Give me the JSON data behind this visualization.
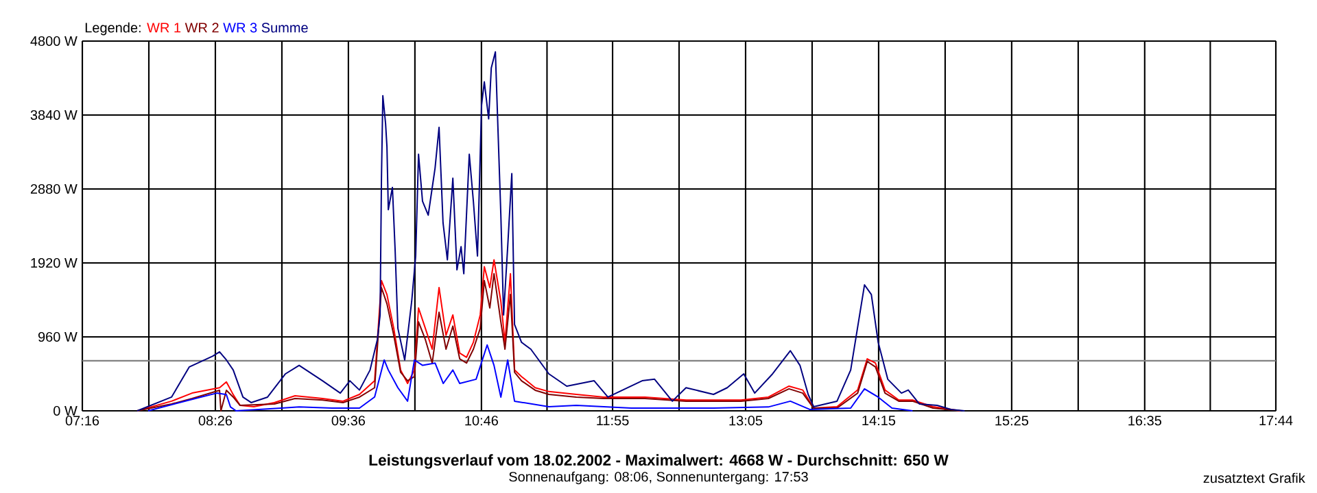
{
  "chart_data": {
    "type": "line",
    "title": "Leistungsverlauf vom 18.02.2002 - Maximalwert: 4668 W - Durchschnitt: 650 W",
    "subtitle": "Sonnenaufgang: 08:06, Sonnenuntergang: 17:53",
    "legend_title": "Legende:",
    "annotations": [
      "zusatztext Grafik"
    ],
    "legend": "top left",
    "grid": true,
    "xlim": [
      7.2667,
      17.7333
    ],
    "ylim": [
      0,
      4800
    ],
    "xticks": [
      {
        "value": 7.2667,
        "label": "07:16"
      },
      {
        "value": 7.85,
        "label": null
      },
      {
        "value": 8.4333,
        "label": "08:26"
      },
      {
        "value": 9.0167,
        "label": null
      },
      {
        "value": 9.6,
        "label": "09:36"
      },
      {
        "value": 10.1833,
        "label": null
      },
      {
        "value": 10.7667,
        "label": "10:46"
      },
      {
        "value": 11.3417,
        "label": null
      },
      {
        "value": 11.9167,
        "label": "11:55"
      },
      {
        "value": 12.5,
        "label": null
      },
      {
        "value": 13.0833,
        "label": "13:05"
      },
      {
        "value": 13.6667,
        "label": null
      },
      {
        "value": 14.25,
        "label": "14:15"
      },
      {
        "value": 14.8333,
        "label": null
      },
      {
        "value": 15.4167,
        "label": "15:25"
      },
      {
        "value": 16.0,
        "label": null
      },
      {
        "value": 16.5833,
        "label": "16:35"
      },
      {
        "value": 17.1583,
        "label": null
      },
      {
        "value": 17.7333,
        "label": "17:44"
      }
    ],
    "yticks": [
      {
        "value": 0,
        "label": "0 W"
      },
      {
        "value": 960,
        "label": "960 W"
      },
      {
        "value": 1920,
        "label": "1920 W"
      },
      {
        "value": 2880,
        "label": "2880 W"
      },
      {
        "value": 3840,
        "label": "3840 W"
      },
      {
        "value": 4800,
        "label": "4800 W"
      }
    ],
    "ref_lines": [
      {
        "axis": "y",
        "value": 650,
        "color": "#808080"
      }
    ],
    "series": [
      {
        "name": "WR 1",
        "color": "#ff0000",
        "x": [
          7.748,
          8.049,
          8.229,
          8.47,
          8.53,
          8.59,
          8.65,
          8.771,
          8.951,
          9.132,
          9.373,
          9.553,
          9.697,
          9.83,
          9.89,
          9.938,
          9.998,
          10.058,
          10.119,
          10.179,
          10.215,
          10.275,
          10.335,
          10.395,
          10.456,
          10.516,
          10.576,
          10.636,
          10.696,
          10.756,
          10.792,
          10.84,
          10.877,
          10.937,
          10.973,
          11.021,
          11.057,
          11.118,
          11.238,
          11.358,
          11.599,
          11.84,
          12.2,
          12.561,
          13.043,
          13.283,
          13.464,
          13.584,
          13.68,
          13.885,
          14.066,
          14.15,
          14.222,
          14.306,
          14.427,
          14.547,
          14.727,
          14.968
        ],
        "values": [
          0,
          125,
          230,
          300,
          375,
          210,
          71,
          53,
          107,
          195,
          160,
          125,
          213,
          390,
          1690,
          1510,
          1070,
          530,
          355,
          530,
          1335,
          1070,
          800,
          1600,
          980,
          1245,
          750,
          695,
          890,
          1245,
          1870,
          1600,
          1960,
          1420,
          890,
          1780,
          530,
          445,
          300,
          250,
          213,
          178,
          178,
          140,
          140,
          178,
          320,
          270,
          35,
          53,
          270,
          675,
          620,
          270,
          140,
          140,
          53,
          0
        ]
      },
      {
        "name": "WR 2",
        "color": "#800000",
        "x": [
          7.748,
          8.049,
          8.229,
          8.47,
          8.482,
          8.53,
          8.59,
          8.65,
          8.951,
          9.132,
          9.373,
          9.553,
          9.697,
          9.83,
          9.89,
          9.938,
          9.998,
          10.058,
          10.119,
          10.179,
          10.215,
          10.275,
          10.335,
          10.395,
          10.456,
          10.516,
          10.576,
          10.636,
          10.696,
          10.756,
          10.792,
          10.84,
          10.877,
          10.937,
          10.973,
          11.021,
          11.057,
          11.118,
          11.238,
          11.358,
          11.599,
          11.84,
          12.2,
          12.561,
          13.043,
          13.283,
          13.464,
          13.584,
          13.68,
          13.885,
          14.066,
          14.15,
          14.222,
          14.306,
          14.427,
          14.547,
          14.727,
          14.968
        ],
        "values": [
          0,
          89,
          160,
          267,
          0,
          267,
          178,
          71,
          89,
          160,
          140,
          107,
          178,
          300,
          1600,
          1390,
          980,
          500,
          390,
          445,
          1155,
          925,
          620,
          1280,
          800,
          1100,
          675,
          620,
          800,
          1070,
          1690,
          1335,
          1780,
          1155,
          800,
          1510,
          500,
          390,
          267,
          213,
          178,
          160,
          160,
          125,
          125,
          160,
          285,
          230,
          35,
          35,
          230,
          640,
          570,
          230,
          125,
          125,
          35,
          0
        ]
      },
      {
        "name": "WR 3",
        "color": "#0000ff",
        "x": [
          7.844,
          8.205,
          8.446,
          8.53,
          8.566,
          8.615,
          9.012,
          9.168,
          9.457,
          9.697,
          9.83,
          9.914,
          9.95,
          10.034,
          10.119,
          10.179,
          10.251,
          10.36,
          10.432,
          10.516,
          10.576,
          10.72,
          10.817,
          10.877,
          10.937,
          10.997,
          11.057,
          11.358,
          11.599,
          12.08,
          12.802,
          13.283,
          13.476,
          13.645,
          14.005,
          14.126,
          14.246,
          14.367,
          14.547
        ],
        "values": [
          0,
          140,
          230,
          210,
          50,
          0,
          35,
          50,
          35,
          35,
          180,
          660,
          530,
          300,
          125,
          660,
          590,
          620,
          355,
          530,
          355,
          410,
          855,
          590,
          178,
          660,
          125,
          53,
          71,
          35,
          35,
          50,
          125,
          18,
          35,
          285,
          178,
          35,
          0
        ]
      },
      {
        "name": "Summe",
        "color": "#000080",
        "x": [
          7.748,
          8.049,
          8.205,
          8.41,
          8.47,
          8.53,
          8.59,
          8.675,
          8.747,
          8.891,
          9.048,
          9.168,
          9.373,
          9.529,
          9.613,
          9.697,
          9.79,
          9.854,
          9.878,
          9.89,
          9.902,
          9.926,
          9.938,
          9.95,
          9.986,
          10.01,
          10.034,
          10.094,
          10.155,
          10.19,
          10.215,
          10.25,
          10.3,
          10.36,
          10.395,
          10.43,
          10.468,
          10.516,
          10.552,
          10.588,
          10.612,
          10.66,
          10.696,
          10.732,
          10.768,
          10.792,
          10.83,
          10.853,
          10.889,
          10.937,
          10.961,
          10.997,
          11.033,
          11.057,
          11.118,
          11.2,
          11.358,
          11.515,
          11.755,
          11.876,
          12.176,
          12.285,
          12.441,
          12.561,
          12.802,
          12.922,
          13.067,
          13.163,
          13.32,
          13.476,
          13.56,
          13.632,
          13.68,
          13.885,
          14.005,
          14.126,
          14.186,
          14.246,
          14.33,
          14.45,
          14.51,
          14.607,
          14.763,
          14.884,
          15.004
        ],
        "values": [
          0,
          178,
          570,
          710,
          765,
          660,
          530,
          178,
          107,
          178,
          480,
          590,
          390,
          230,
          390,
          270,
          530,
          925,
          1245,
          3020,
          4090,
          3730,
          3430,
          2610,
          2900,
          2080,
          1070,
          660,
          1420,
          2010,
          3330,
          2720,
          2540,
          3150,
          3680,
          2440,
          1960,
          3020,
          1830,
          2130,
          1780,
          3330,
          2720,
          2010,
          3970,
          4270,
          3790,
          4450,
          4660,
          2540,
          1245,
          2130,
          3080,
          1120,
          890,
          800,
          480,
          320,
          390,
          178,
          390,
          410,
          125,
          300,
          213,
          300,
          480,
          230,
          480,
          780,
          590,
          213,
          53,
          125,
          530,
          1635,
          1510,
          890,
          410,
          230,
          270,
          89,
          71,
          18,
          0
        ]
      }
    ]
  }
}
